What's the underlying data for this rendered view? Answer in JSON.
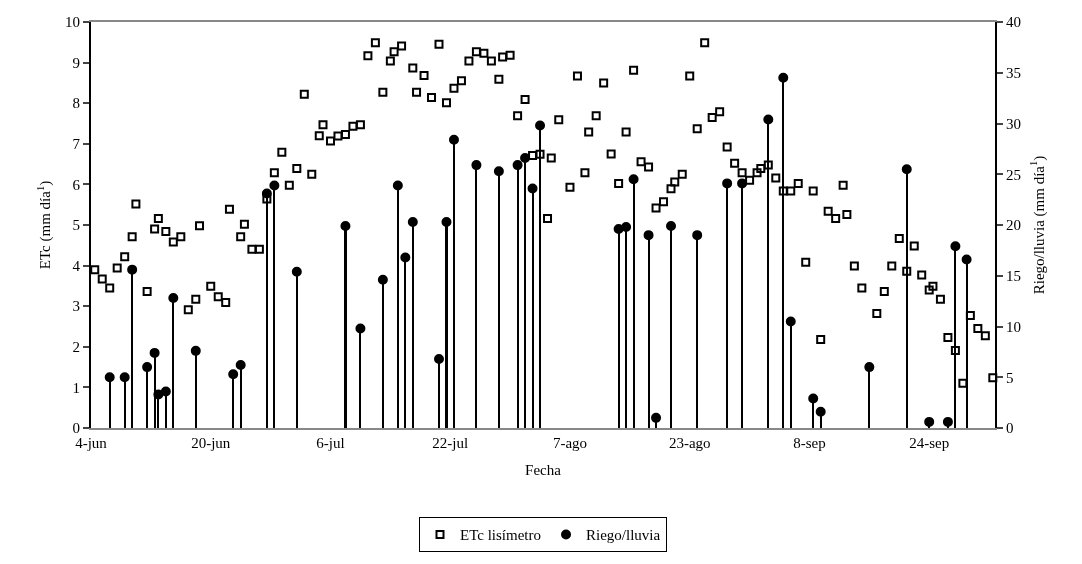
{
  "chart_data": {
    "type": "scatter",
    "xlabel": "Fecha",
    "ylabel": "ETc (mm día$^{1}$)",
    "y2label": "Riego/lluvia (mm día$^{1}$)",
    "legend": "bottom",
    "xlim": [
      "--06-04",
      "--10-02T19:00"
    ],
    "xticks": [
      {
        "value": "--06-04",
        "label": "4-jun"
      },
      {
        "value": "--06-20",
        "label": "20-jun"
      },
      {
        "value": "--07-06",
        "label": "6-jul"
      },
      {
        "value": "--07-22",
        "label": "22-jul"
      },
      {
        "value": "--08-07",
        "label": "7-ago"
      },
      {
        "value": "--08-23",
        "label": "23-ago"
      },
      {
        "value": "--09-08",
        "label": "8-sep"
      },
      {
        "value": "--09-24",
        "label": "24-sep"
      }
    ],
    "ylim": [
      0,
      10
    ],
    "yticks": [
      0,
      1,
      2,
      3,
      4,
      5,
      6,
      7,
      8,
      9,
      10
    ],
    "y2lim": [
      0,
      40
    ],
    "y2ticks": [
      0,
      5,
      10,
      15,
      20,
      25,
      30,
      35,
      40
    ],
    "series": [
      {
        "name": "ETc lisímetro",
        "marker": "square",
        "color": "#000000",
        "x": [
          "--06-04T12:00",
          "--06-05T12:00",
          "--06-06T12:00",
          "--06-07T12:00",
          "--06-08T12:00",
          "--06-09T12:00",
          "--06-10",
          "--06-11T12:00",
          "--06-12T12:00",
          "--06-13",
          "--06-14",
          "--06-15",
          "--06-16",
          "--06-17",
          "--06-18",
          "--06-18T12:00",
          "--06-20",
          "--06-21",
          "--06-22",
          "--06-22T12:00",
          "--06-24",
          "--06-24T12:00",
          "--06-25T12:00",
          "--06-26T12:00",
          "--06-27T12:00",
          "--06-28T12:00",
          "--06-29T12:00",
          "--06-30T12:00",
          "--07-01T12:00",
          "--07-02T12:00",
          "--07-03T12:00",
          "--07-04T12:00",
          "--07-05",
          "--07-06",
          "--07-07",
          "--07-08",
          "--07-09",
          "--07-10",
          "--07-11",
          "--07-12",
          "--07-13",
          "--07-14",
          "--07-14T12:00",
          "--07-15T12:00",
          "--07-17",
          "--07-17T12:00",
          "--07-18T12:00",
          "--07-19T12:00",
          "--07-20T12:00",
          "--07-21T12:00",
          "--07-22T12:00",
          "--07-23T12:00",
          "--07-24T12:00",
          "--07-25T12:00",
          "--07-26T12:00",
          "--07-27T12:00",
          "--07-28T12:00",
          "--07-29",
          "--07-30",
          "--07-31",
          "--08-01",
          "--08-02",
          "--08-03",
          "--08-04",
          "--08-04T12:00",
          "--08-05T12:00",
          "--08-07",
          "--08-08",
          "--08-09",
          "--08-09T12:00",
          "--08-10T12:00",
          "--08-11T12:00",
          "--08-12T12:00",
          "--08-13T12:00",
          "--08-14T12:00",
          "--08-15T12:00",
          "--08-16T12:00",
          "--08-17T12:00",
          "--08-18T12:00",
          "--08-19T12:00",
          "--08-20T12:00",
          "--08-21",
          "--08-22",
          "--08-23",
          "--08-24",
          "--08-25",
          "--08-26",
          "--08-27",
          "--08-28",
          "--08-29",
          "--08-30",
          "--08-31",
          "--09-01",
          "--09-01T12:00",
          "--09-02T12:00",
          "--09-03T12:00",
          "--09-04T12:00",
          "--09-05T12:00",
          "--09-06T12:00",
          "--09-07T12:00",
          "--09-08T12:00",
          "--09-09T12:00",
          "--09-10T12:00",
          "--09-11T12:00",
          "--09-12T12:00",
          "--09-13",
          "--09-14",
          "--09-15",
          "--09-17",
          "--09-18",
          "--09-19",
          "--09-20",
          "--09-21",
          "--09-22",
          "--09-23",
          "--09-24",
          "--09-24T12:00",
          "--09-25T12:00",
          "--09-26T12:00",
          "--09-27T12:00",
          "--09-28T12:00",
          "--09-29T12:00",
          "--09-30T12:00",
          "--10-01T12:00",
          "--10-02T12:00"
        ],
        "values": [
          3.9,
          3.67,
          3.45,
          3.94,
          4.22,
          4.71,
          5.52,
          3.36,
          4.9,
          5.16,
          4.84,
          4.58,
          4.71,
          2.91,
          3.17,
          4.98,
          3.49,
          3.23,
          3.09,
          5.39,
          4.71,
          5.02,
          4.4,
          4.4,
          5.64,
          6.29,
          6.79,
          5.98,
          6.39,
          8.22,
          6.25,
          7.2,
          7.47,
          7.07,
          7.19,
          7.23,
          7.43,
          7.47,
          9.17,
          9.49,
          8.27,
          9.04,
          9.27,
          9.41,
          8.87,
          8.27,
          8.68,
          8.14,
          9.45,
          8.01,
          8.37,
          8.55,
          9.04,
          9.27,
          9.23,
          9.04,
          8.59,
          9.14,
          9.18,
          7.69,
          8.09,
          6.71,
          6.74,
          5.16,
          6.65,
          7.59,
          5.93,
          8.67,
          6.29,
          7.29,
          7.69,
          8.5,
          6.75,
          6.02,
          7.29,
          8.81,
          6.56,
          6.43,
          5.42,
          5.57,
          5.89,
          6.06,
          6.25,
          8.67,
          7.37,
          9.49,
          7.65,
          7.79,
          6.92,
          6.52,
          6.29,
          6.1,
          6.29,
          6.39,
          6.48,
          6.16,
          5.84,
          5.84,
          6.02,
          4.08,
          5.84,
          2.18,
          5.34,
          5.16,
          5.98,
          5.26,
          3.99,
          3.45,
          2.82,
          3.36,
          3.99,
          4.67,
          3.86,
          4.48,
          3.77,
          3.4,
          3.49,
          3.17,
          2.23,
          1.91,
          1.1,
          2.77,
          2.45,
          2.27,
          1.24
        ]
      },
      {
        "name": "Riego/lluvia",
        "type": "lollipop",
        "marker": "circle",
        "axis": "y2",
        "color": "#000000",
        "x": [
          "--06-06T12:00",
          "--06-08T12:00",
          "--06-09T12:00",
          "--06-11T12:00",
          "--06-12T12:00",
          "--06-13",
          "--06-14",
          "--06-15",
          "--06-18",
          "--06-23",
          "--06-24",
          "--06-27T12:00",
          "--06-28T12:00",
          "--07-01T12:00",
          "--07-08",
          "--07-10",
          "--07-13",
          "--07-15",
          "--07-16",
          "--07-17",
          "--07-20T12:00",
          "--07-21T12:00",
          "--07-22T12:00",
          "--07-25T12:00",
          "--07-28T12:00",
          "--07-31",
          "--08-01",
          "--08-02",
          "--08-03",
          "--08-13T12:00",
          "--08-14T12:00",
          "--08-15T12:00",
          "--08-17T12:00",
          "--08-18T12:00",
          "--08-20T12:00",
          "--08-24",
          "--08-28",
          "--08-30",
          "--09-02T12:00",
          "--09-04T12:00",
          "--09-05T12:00",
          "--09-08T12:00",
          "--09-09T12:00",
          "--09-16",
          "--09-21",
          "--09-24",
          "--09-26T12:00",
          "--09-27T12:00",
          "--09-29"
        ],
        "values": [
          5.0,
          5.0,
          15.6,
          6.0,
          7.4,
          3.3,
          3.6,
          12.8,
          7.6,
          5.3,
          6.2,
          23.1,
          23.9,
          15.4,
          19.9,
          9.8,
          14.6,
          23.9,
          16.8,
          20.3,
          6.8,
          20.3,
          28.4,
          25.9,
          25.3,
          25.9,
          26.6,
          23.6,
          29.8,
          19.6,
          19.8,
          24.5,
          19.0,
          1.0,
          19.9,
          19.0,
          24.1,
          24.1,
          30.4,
          34.5,
          10.5,
          2.9,
          1.6,
          6.0,
          25.5,
          0.6,
          0.6,
          17.9,
          16.6
        ]
      }
    ]
  }
}
